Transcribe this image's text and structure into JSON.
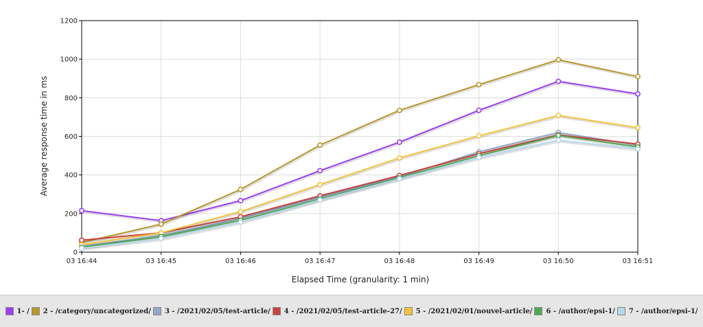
{
  "chart_data": {
    "type": "line",
    "x": [
      "03 16:44",
      "03 16:45",
      "03 16:46",
      "03 16:47",
      "03 16:48",
      "03 16:49",
      "03 16:50",
      "03 16:51"
    ],
    "xlabel": "Elapsed Time (granularity: 1 min)",
    "ylabel": "Average response time in ms",
    "ylim": [
      0,
      1200
    ],
    "yticks": [
      0,
      200,
      400,
      600,
      800,
      1000,
      1200
    ],
    "grid": true,
    "legend_position": "bottom",
    "series": [
      {
        "name": "1- /",
        "color": "#9b3ff0",
        "values": [
          215,
          163,
          267,
          422,
          570,
          735,
          885,
          820
        ]
      },
      {
        "name": "2 - /category/uncategorized/",
        "color": "#b8972c",
        "values": [
          50,
          145,
          325,
          555,
          735,
          868,
          997,
          910
        ]
      },
      {
        "name": "3 - /2021/02/05/test-article/",
        "color": "#8fa9c9",
        "values": [
          30,
          85,
          175,
          285,
          390,
          520,
          620,
          555
        ]
      },
      {
        "name": "4 - /2021/02/05/test-article-27/",
        "color": "#c9433f",
        "values": [
          62,
          100,
          183,
          292,
          397,
          510,
          608,
          560
        ]
      },
      {
        "name": "5 - /2021/02/01/nouvel-article/",
        "color": "#f2c23c",
        "values": [
          38,
          100,
          210,
          350,
          488,
          603,
          708,
          645
        ]
      },
      {
        "name": "6 - /author/epsi-1/",
        "color": "#4fa84f",
        "values": [
          25,
          80,
          165,
          275,
          385,
          500,
          605,
          545
        ]
      },
      {
        "name": "7 - /author/epsi-1/",
        "color": "#b5d8ef",
        "values": [
          20,
          70,
          155,
          270,
          380,
          490,
          580,
          535
        ]
      }
    ]
  }
}
